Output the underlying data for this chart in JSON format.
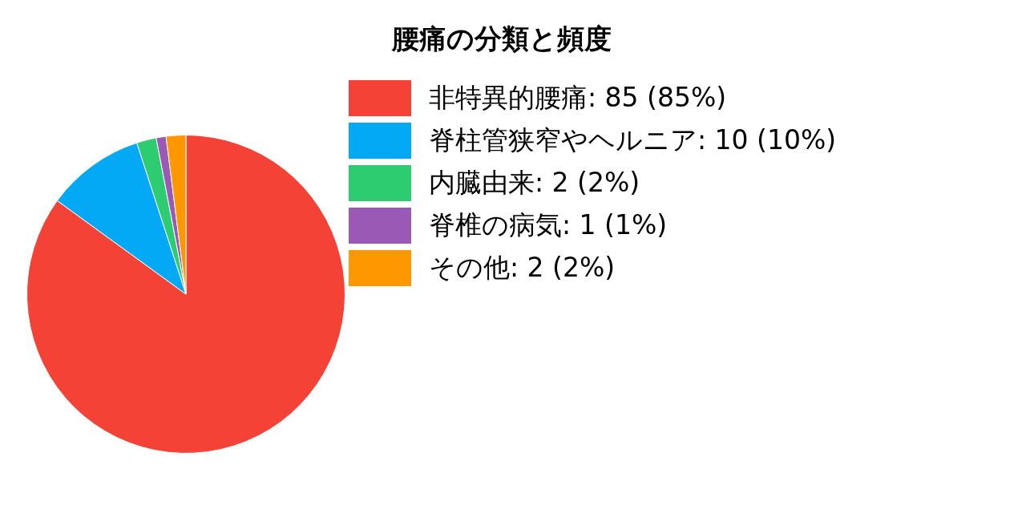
{
  "chart_data": {
    "type": "pie",
    "title": "腰痛の分類と頻度",
    "categories": [
      "非特異的腰痛: 85 (85%)",
      "脊柱管狭窄やヘルニア: 10 (10%)",
      "内臓由来: 2 (2%)",
      "脊椎の病気: 1 (1%)",
      "その他: 2 (2%)"
    ],
    "values": [
      85,
      10,
      2,
      1,
      2
    ],
    "colors": [
      "#f44336",
      "#03a9f4",
      "#2ecc71",
      "#9b59b6",
      "#ff9800"
    ],
    "legend": "right"
  }
}
